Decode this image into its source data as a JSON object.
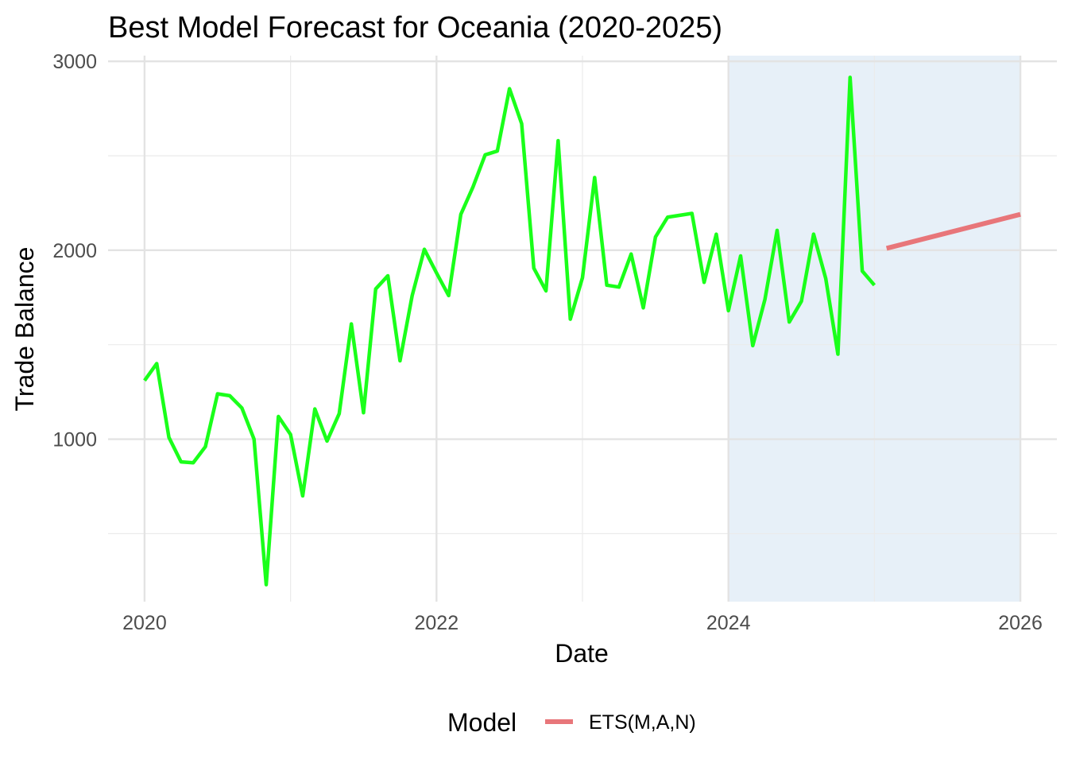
{
  "chart_data": {
    "type": "line",
    "title": "Best Model Forecast for Oceania (2020-2025)",
    "xlabel": "Date",
    "ylabel": "Trade Balance",
    "xlim": [
      "2019-10-01",
      "2026-04-01"
    ],
    "ylim": [
      140,
      3030
    ],
    "x_ticks": [
      "2020",
      "2022",
      "2024",
      "2026"
    ],
    "y_ticks": [
      "1000",
      "2000",
      "3000"
    ],
    "grid": true,
    "highlight_region": {
      "start": "2024-01-01",
      "end": "2026-01-01",
      "color": "#e7f0f8"
    },
    "legend": {
      "title": "Model",
      "position": "bottom",
      "entries": [
        "ETS(M,A,N)"
      ]
    },
    "series": [
      {
        "color": "#1aff1a",
        "x": [
          "2020-01",
          "2020-02",
          "2020-03",
          "2020-04",
          "2020-05",
          "2020-06",
          "2020-07",
          "2020-08",
          "2020-09",
          "2020-10",
          "2020-11",
          "2020-12",
          "2021-01",
          "2021-02",
          "2021-03",
          "2021-04",
          "2021-05",
          "2021-06",
          "2021-07",
          "2021-08",
          "2021-09",
          "2021-10",
          "2021-11",
          "2021-12",
          "2022-01",
          "2022-02",
          "2022-03",
          "2022-04",
          "2022-05",
          "2022-06",
          "2022-07",
          "2022-08",
          "2022-09",
          "2022-10",
          "2022-11",
          "2022-12",
          "2023-01",
          "2023-02",
          "2023-03",
          "2023-04",
          "2023-05",
          "2023-06",
          "2023-07",
          "2023-08",
          "2023-09",
          "2023-10",
          "2023-11",
          "2023-12",
          "2024-01",
          "2024-02",
          "2024-03",
          "2024-04",
          "2024-05",
          "2024-06",
          "2024-07",
          "2024-08",
          "2024-09",
          "2024-10",
          "2024-11",
          "2024-12",
          "2025-01"
        ],
        "values": [
          1310,
          1400,
          1010,
          880,
          875,
          960,
          1240,
          1230,
          1165,
          1000,
          230,
          1120,
          1025,
          700,
          1160,
          990,
          1135,
          1610,
          1140,
          1795,
          1865,
          1415,
          1760,
          2005,
          1880,
          1760,
          2190,
          2335,
          2505,
          2525,
          2855,
          2670,
          1905,
          1785,
          2580,
          1635,
          1855,
          2385,
          1815,
          1805,
          1980,
          1695,
          2070,
          2175,
          2185,
          2195,
          1830,
          2085,
          1680,
          1970,
          1495,
          1740,
          2105,
          1620,
          1730,
          2085,
          1850,
          1450,
          2915,
          1890,
          1815
        ]
      },
      {
        "name": "ETS(M,A,N)",
        "color": "#e8767a",
        "x": [
          "2025-02",
          "2026-01"
        ],
        "values": [
          2010,
          2190
        ]
      }
    ]
  }
}
